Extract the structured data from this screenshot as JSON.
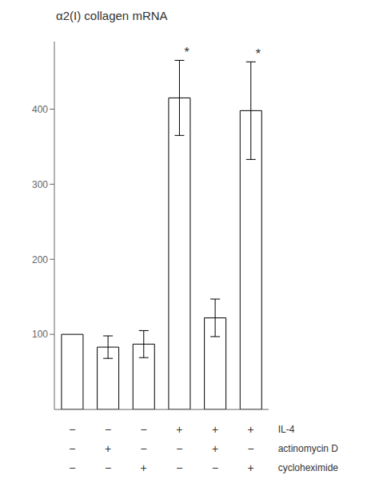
{
  "chart_data": {
    "type": "bar",
    "title": "α2(I) collagen mRNA",
    "categories": [
      null,
      null,
      null,
      null,
      null,
      null
    ],
    "values": [
      100,
      83,
      87,
      415,
      122,
      398
    ],
    "errors": [
      0,
      15,
      18,
      50,
      25,
      65
    ],
    "annotations": [
      null,
      null,
      null,
      "*",
      null,
      "*"
    ],
    "color": "white",
    "ylim": [
      0,
      490
    ],
    "yticks": [
      100,
      200,
      300,
      400
    ],
    "grid": false,
    "tick_labels": "y",
    "rows": [
      {
        "label": "IL-4",
        "signs": [
          "−",
          "−",
          "−",
          "+",
          "+",
          "+"
        ]
      },
      {
        "label": "actinomycin D",
        "signs": [
          "−",
          "+",
          "−",
          "−",
          "+",
          "−"
        ]
      },
      {
        "label": "cycloheximide",
        "signs": [
          "−",
          "−",
          "+",
          "−",
          "−",
          "+"
        ]
      }
    ]
  }
}
